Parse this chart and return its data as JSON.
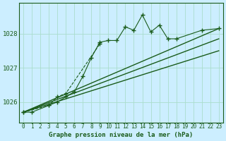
{
  "title": "Graphe pression niveau de la mer (hPa)",
  "bg_color": "#cceeff",
  "grid_color": "#aaddcc",
  "line_color": "#1a5c1a",
  "x_hours": [
    0,
    1,
    2,
    3,
    4,
    5,
    6,
    7,
    8,
    9,
    10,
    11,
    12,
    13,
    14,
    15,
    16,
    17,
    18,
    19,
    20,
    21,
    22,
    23
  ],
  "series1": [
    1025.7,
    1025.7,
    null,
    1025.9,
    1026.0,
    1026.15,
    1026.3,
    1026.75,
    1027.3,
    1027.75,
    1027.8,
    1027.8,
    1028.2,
    1028.1,
    1028.55,
    1028.05,
    1028.25,
    1027.85,
    1027.85,
    null,
    null,
    1028.1,
    null,
    1028.15
  ],
  "series2": [
    1025.7,
    null,
    null,
    1025.9,
    1026.15,
    1026.25,
    null,
    null,
    null,
    1027.7,
    null,
    null,
    null,
    null,
    null,
    null,
    null,
    null,
    null,
    null,
    null,
    null,
    null,
    null
  ],
  "trend1": [
    1025.7,
    1028.15
  ],
  "trend2": [
    1025.7,
    1027.85
  ],
  "trend3": [
    1025.7,
    1027.5
  ],
  "ylim": [
    1025.4,
    1028.9
  ],
  "yticks": [
    1026,
    1027,
    1028
  ]
}
